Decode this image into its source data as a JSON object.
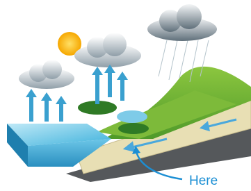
{
  "label": "Here"
}
